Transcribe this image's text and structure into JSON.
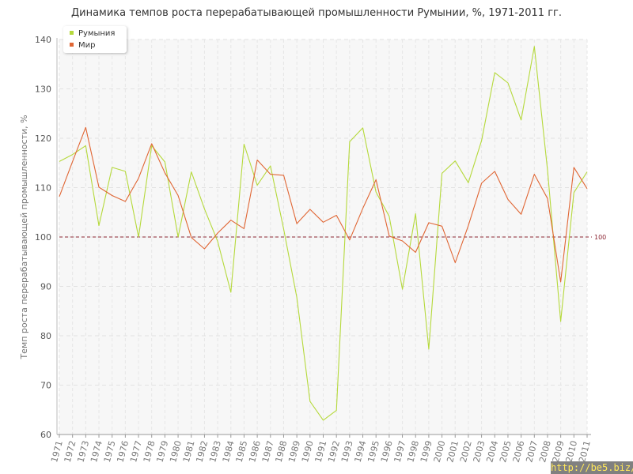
{
  "chart_data": {
    "type": "line",
    "title": "Динамика темпов роста перерабатывающей промышленности Румынии, %, 1971-2011 гг.",
    "ylabel": "Темп роста перерабатывающей промышленности, %",
    "xlabel": "",
    "ylim": [
      60,
      140
    ],
    "yticks": [
      "60",
      "70",
      "80",
      "90",
      "100",
      "110",
      "120",
      "130",
      "140"
    ],
    "grid": true,
    "legend_position": "top-left",
    "categories": [
      "1971",
      "1972",
      "1973",
      "1974",
      "1975",
      "1976",
      "1977",
      "1978",
      "1979",
      "1980",
      "1981",
      "1982",
      "1983",
      "1984",
      "1985",
      "1986",
      "1987",
      "1988",
      "1989",
      "1990",
      "1991",
      "1992",
      "1993",
      "1994",
      "1995",
      "1996",
      "1997",
      "1998",
      "1999",
      "2000",
      "2001",
      "2002",
      "2003",
      "2004",
      "2005",
      "2006",
      "2007",
      "2008",
      "2009",
      "2010",
      "2011"
    ],
    "series": [
      {
        "name": "Румыния",
        "color": "#b5d93b",
        "values": [
          115.3,
          116.7,
          118.5,
          102.3,
          114.1,
          113.3,
          100.0,
          118.5,
          115.2,
          100.0,
          113.2,
          105.7,
          99.1,
          88.8,
          118.8,
          110.5,
          114.4,
          101.6,
          87.8,
          66.7,
          62.9,
          64.9,
          119.3,
          122.1,
          109.1,
          104.2,
          89.4,
          104.7,
          77.3,
          112.9,
          115.4,
          111.0,
          119.5,
          133.3,
          131.2,
          123.7,
          138.6,
          113.5,
          82.9,
          109.0,
          113.2
        ]
      },
      {
        "name": "Мир",
        "color": "#e06634",
        "values": [
          108.2,
          115.3,
          122.2,
          110.1,
          108.4,
          107.2,
          111.9,
          118.9,
          113.0,
          108.4,
          99.9,
          97.6,
          100.8,
          103.4,
          101.7,
          115.6,
          112.7,
          112.5,
          102.7,
          105.6,
          103.0,
          104.4,
          99.4,
          105.8,
          111.6,
          100.2,
          99.2,
          96.9,
          102.9,
          102.2,
          94.8,
          102.3,
          110.9,
          113.3,
          107.6,
          104.6,
          112.7,
          107.8,
          90.9,
          114.1,
          109.8
        ]
      }
    ],
    "reference_line": {
      "value": 100,
      "label": "100",
      "color": "#8b2532"
    }
  },
  "watermark": "http://be5.biz/"
}
